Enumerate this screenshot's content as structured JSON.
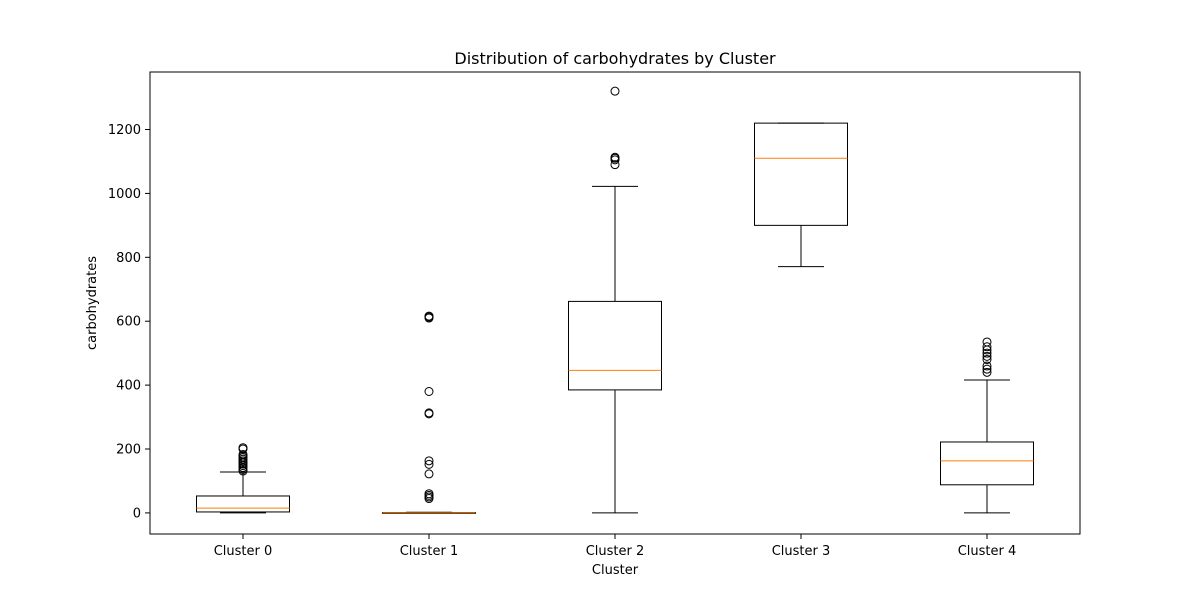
{
  "chart_data": {
    "type": "box",
    "title": "Distribution of carbohydrates by Cluster",
    "xlabel": "Cluster",
    "ylabel": "carbohydrates",
    "ylim": [
      -66,
      1380
    ],
    "yticks": [
      0,
      200,
      400,
      600,
      800,
      1000,
      1200
    ],
    "grid": false,
    "colors": {
      "box": "#000000",
      "median": "#ff7f0e",
      "background": "#ffffff"
    },
    "categories": [
      "Cluster 0",
      "Cluster 1",
      "Cluster 2",
      "Cluster 3",
      "Cluster 4"
    ],
    "boxes": [
      {
        "whisker_low": 0,
        "q1": 3,
        "median": 15,
        "q3": 53,
        "whisker_high": 128,
        "outliers": [
          131,
          136,
          142,
          148,
          153,
          158,
          163,
          168,
          173,
          178,
          183,
          200,
          204
        ]
      },
      {
        "whisker_low": 0,
        "q1": 0,
        "median": 0,
        "q3": 1,
        "whisker_high": 2,
        "outliers": [
          45,
          50,
          55,
          60,
          122,
          152,
          163,
          310,
          313,
          380,
          610,
          613,
          616
        ]
      },
      {
        "whisker_low": 0,
        "q1": 385,
        "median": 446,
        "q3": 662,
        "whisker_high": 1022,
        "outliers": [
          1090,
          1105,
          1110,
          1113,
          1320
        ]
      },
      {
        "whisker_low": 771,
        "q1": 900,
        "median": 1110,
        "q3": 1220,
        "whisker_high": 1220,
        "outliers": []
      },
      {
        "whisker_low": 0,
        "q1": 88,
        "median": 163,
        "q3": 222,
        "whisker_high": 416,
        "outliers": [
          440,
          450,
          460,
          480,
          490,
          500,
          510,
          520,
          535
        ]
      }
    ]
  }
}
